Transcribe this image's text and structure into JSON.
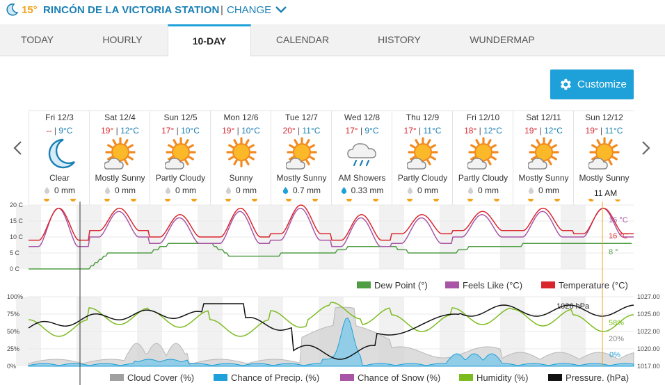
{
  "header": {
    "current_temp": "15°",
    "station_name": "RINCÓN DE LA VICTORIA STATION",
    "divider": "|",
    "change_label": "CHANGE",
    "icons": {
      "weather": "moon-icon",
      "change": "chevron-down-icon"
    }
  },
  "tabs": [
    {
      "label": "TODAY",
      "active": false
    },
    {
      "label": "HOURLY",
      "active": false
    },
    {
      "label": "10-DAY",
      "active": true
    },
    {
      "label": "CALENDAR",
      "active": false
    },
    {
      "label": "HISTORY",
      "active": false
    },
    {
      "label": "WUNDERMAP",
      "active": false
    }
  ],
  "customize": {
    "label": "Customize",
    "icon": "gear-icon"
  },
  "days": [
    {
      "name": "Fri 12/3",
      "hi": "--",
      "lo": "9°C",
      "condition": "Clear",
      "icon": "moon-icon",
      "precip": "0 mm",
      "precip_icon": "gray"
    },
    {
      "name": "Sat 12/4",
      "hi": "19°",
      "lo": "12°C",
      "condition": "Mostly Sunny",
      "icon": "sun-cloud-icon",
      "precip": "0 mm",
      "precip_icon": "gray"
    },
    {
      "name": "Sun 12/5",
      "hi": "17°",
      "lo": "10°C",
      "condition": "Partly Cloudy",
      "icon": "sun-cloud-icon",
      "precip": "0 mm",
      "precip_icon": "gray"
    },
    {
      "name": "Mon 12/6",
      "hi": "19°",
      "lo": "10°C",
      "condition": "Sunny",
      "icon": "sun-icon",
      "precip": "0 mm",
      "precip_icon": "gray"
    },
    {
      "name": "Tue 12/7",
      "hi": "20°",
      "lo": "11°C",
      "condition": "Mostly Sunny",
      "icon": "sun-cloud-icon",
      "precip": "0.7 mm",
      "precip_icon": "blue"
    },
    {
      "name": "Wed 12/8",
      "hi": "17°",
      "lo": "9°C",
      "condition": "AM Showers",
      "icon": "rain-cloud-icon",
      "precip": "0.33 mm",
      "precip_icon": "blue"
    },
    {
      "name": "Thu 12/9",
      "hi": "17°",
      "lo": "11°C",
      "condition": "Partly Cloudy",
      "icon": "sun-cloud-icon",
      "precip": "0 mm",
      "precip_icon": "gray"
    },
    {
      "name": "Fri 12/10",
      "hi": "18°",
      "lo": "12°C",
      "condition": "Partly Cloudy",
      "icon": "sun-cloud-icon",
      "precip": "0 mm",
      "precip_icon": "gray"
    },
    {
      "name": "Sat 12/11",
      "hi": "19°",
      "lo": "12°C",
      "condition": "Mostly Sunny",
      "icon": "sun-cloud-icon",
      "precip": "0 mm",
      "precip_icon": "gray"
    },
    {
      "name": "Sun 12/12",
      "hi": "19°",
      "lo": "11°C",
      "condition": "Mostly Sunny",
      "icon": "sun-cloud-icon",
      "precip": "",
      "precip_icon": "gray"
    }
  ],
  "tooltip_time": "11 AM",
  "chart_data": [
    {
      "type": "line",
      "y_ticks": [
        "20 C",
        "15 C",
        "10 C",
        "5 C",
        "0 C"
      ],
      "ylim": [
        0,
        20
      ],
      "x": "hourly, Fri 12/3 to Sun 12/12",
      "series": [
        {
          "name": "Temperature (°C)",
          "color": "#d9262d",
          "day_min": [
            9,
            12,
            10,
            10,
            11,
            9,
            11,
            12,
            12,
            11
          ],
          "day_max": [
            19,
            19,
            17,
            19,
            20,
            17,
            17,
            18,
            19,
            19
          ],
          "current_label": "16 °C"
        },
        {
          "name": "Feels Like (°C)",
          "color": "#a855a6",
          "day_min": [
            7,
            10,
            8,
            8,
            9,
            7,
            8,
            10,
            10,
            10
          ],
          "day_max": [
            19,
            18,
            16,
            18,
            19,
            16,
            16,
            17,
            18,
            19
          ],
          "current_label": "16 °C"
        },
        {
          "name": "Dew Point (°)",
          "color": "#4f9d43",
          "day_level": [
            0,
            5,
            8,
            4,
            5,
            7,
            5,
            7,
            8,
            8
          ],
          "current_label": "8 °"
        }
      ],
      "legend_position": "bottom-right"
    },
    {
      "type": "line",
      "y_ticks_left": [
        "100%",
        "75%",
        "50%",
        "25%",
        "0%"
      ],
      "y_ticks_right": [
        "1027.00",
        "1025.00",
        "1022.00",
        "1020.00",
        "1017.00"
      ],
      "series": [
        {
          "name": "Cloud Cover (%)",
          "color": "#a0a0a0",
          "current_label": "20%"
        },
        {
          "name": "Chance of Precip. (%)",
          "color": "#1ea0d8",
          "current_label": "0%"
        },
        {
          "name": "Chance of Snow (%)",
          "color": "#a855a6"
        },
        {
          "name": "Humidity (%)",
          "color": "#7cbb1f",
          "current_label": "58%"
        },
        {
          "name": "Pressure. (hPa)",
          "color": "#111111",
          "current_label": "1026 hPa"
        }
      ],
      "legend_position": "bottom"
    }
  ],
  "nav": {
    "prev_icon": "chevron-left-icon",
    "next_icon": "chevron-right-icon"
  }
}
